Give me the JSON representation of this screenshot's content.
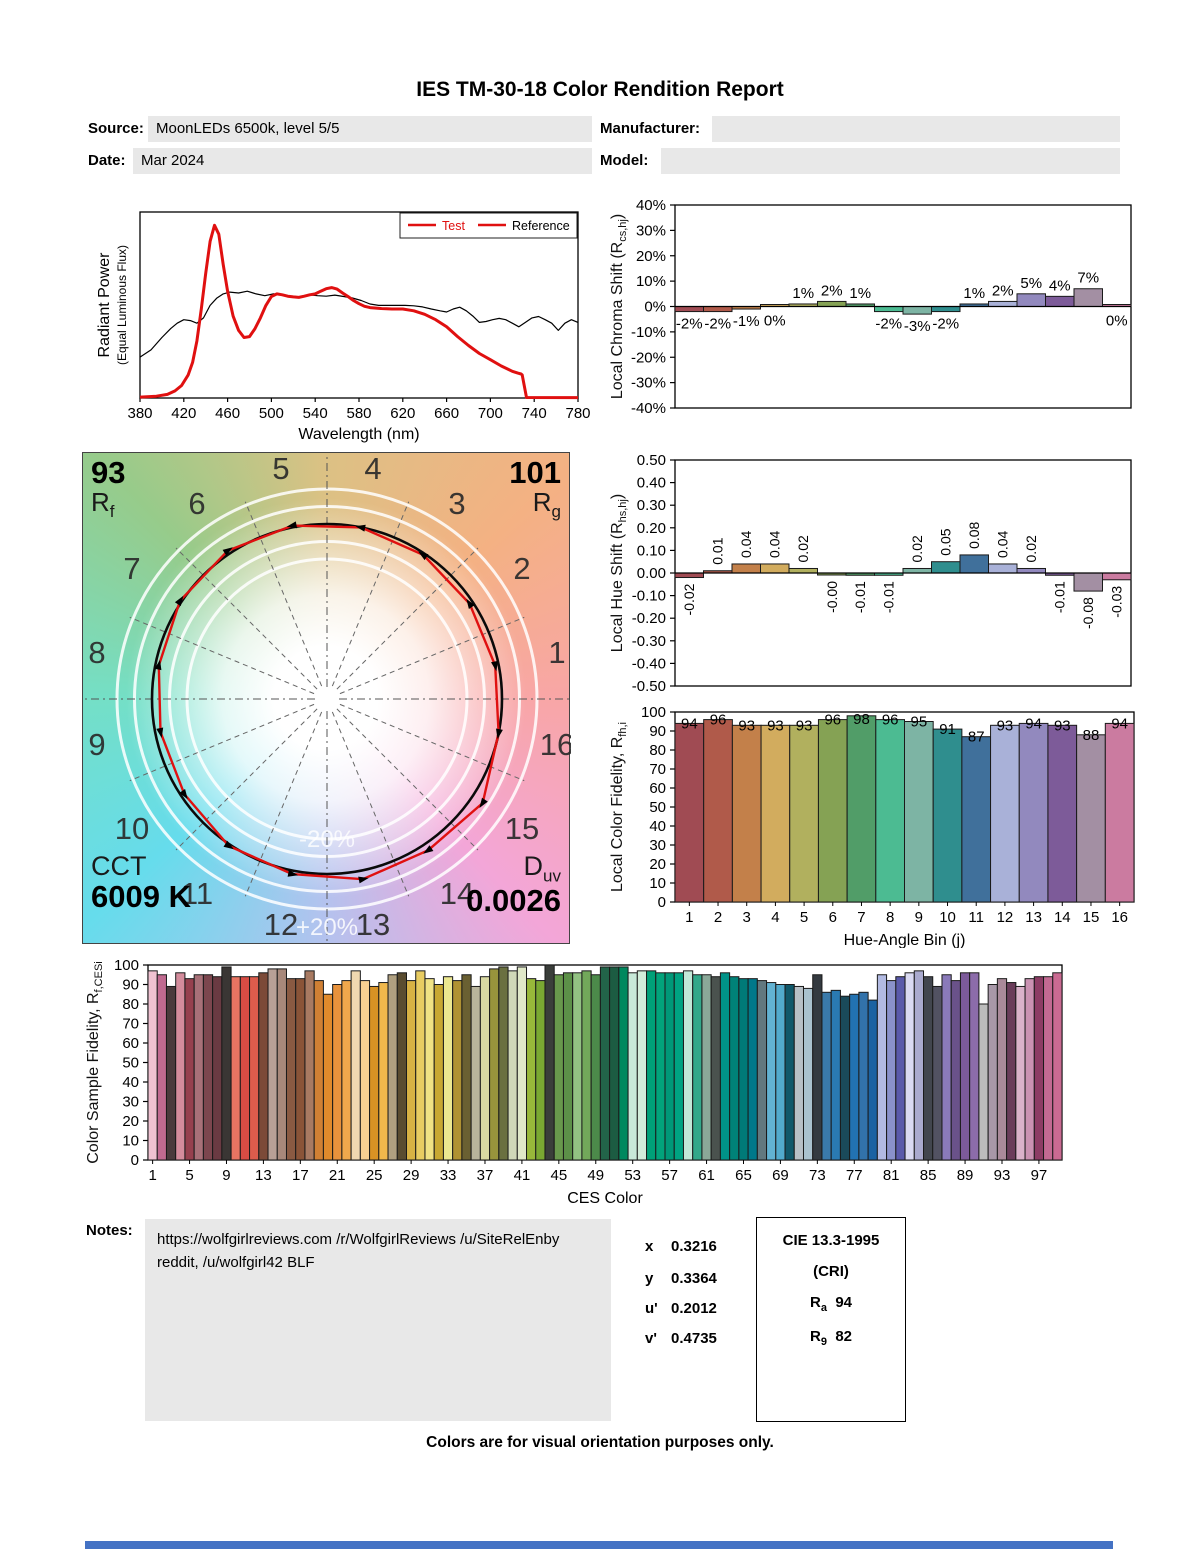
{
  "accent_red": "#e01010",
  "report": {
    "title": "IES TM-30-18 Color Rendition Report",
    "source_label": "Source:",
    "source_value": "MoonLEDs 6500k, level 5/5",
    "manufacturer_label": "Manufacturer:",
    "manufacturer_value": "",
    "date_label": "Date:",
    "date_value": "Mar 2024",
    "model_label": "Model:",
    "model_value": "",
    "notes_label": "Notes:",
    "notes_line1": "https://wolfgirlreviews.com /r/WolfgirlReviews /u/SiteRelEnby",
    "notes_line2": "reddit, /u/wolfgirl42 BLF",
    "footer": "Colors are for visual orientation purposes only."
  },
  "summary": {
    "rf_value": "93",
    "rf_sym": "R",
    "rf_sub": "f",
    "rg_value": "101",
    "rg_sym": "R",
    "rg_sub": "g",
    "cct_label": "CCT",
    "cct_value": "6009 K",
    "duv_sym": "D",
    "duv_sub": "uv",
    "duv_value": "0.0026",
    "chromaticity": [
      {
        "label": "x",
        "value": "0.3216"
      },
      {
        "label": "y",
        "value": "0.3364"
      },
      {
        "label": "u'",
        "value": "0.2012"
      },
      {
        "label": "v'",
        "value": "0.4735"
      }
    ],
    "cri": {
      "title": "CIE 13.3-1995",
      "subtitle": "(CRI)",
      "ra_sym": "R",
      "ra_sub": "a",
      "ra_value": "94",
      "r9_sym": "R",
      "r9_sub": "9",
      "r9_value": "82"
    }
  },
  "hue_bin_colors": [
    "#A04B53",
    "#B05A4A",
    "#C3804A",
    "#D2AC5E",
    "#B1B05E",
    "#85A254",
    "#519D68",
    "#4CBB92",
    "#7DB4A4",
    "#2F8E8E",
    "#40709B",
    "#A9B1D8",
    "#9289BE",
    "#7D5B99",
    "#A38FA3",
    "#CB7BA0"
  ],
  "chart_data": [
    {
      "id": "spd",
      "type": "line",
      "xlabel": "Wavelength (nm)",
      "ylabel": "Radiant Power",
      "ylabel2": "(Equal Luminous Flux)",
      "xlim": [
        380,
        780
      ],
      "xtick_step": 40,
      "legend": [
        {
          "label": "Test",
          "text_color": "#e01010",
          "line_color": "#e01010"
        },
        {
          "label": "Reference",
          "text_color": "#000000",
          "line_color": "#e01010"
        }
      ],
      "series": [
        {
          "name": "Test",
          "color": "#e01010",
          "width": 3,
          "x": [
            380,
            395,
            405,
            412,
            418,
            424,
            428,
            432,
            436,
            440,
            444,
            448,
            452,
            456,
            460,
            465,
            470,
            475,
            480,
            485,
            490,
            495,
            500,
            505,
            510,
            515,
            520,
            525,
            530,
            535,
            540,
            545,
            550,
            555,
            560,
            565,
            570,
            575,
            580,
            585,
            590,
            600,
            610,
            620,
            630,
            640,
            650,
            660,
            670,
            680,
            690,
            700,
            710,
            715,
            720,
            725,
            728,
            729,
            733,
            780
          ],
          "y": [
            0.005,
            0.01,
            0.02,
            0.04,
            0.07,
            0.13,
            0.2,
            0.32,
            0.5,
            0.7,
            0.88,
            0.97,
            0.92,
            0.75,
            0.6,
            0.46,
            0.38,
            0.34,
            0.345,
            0.39,
            0.45,
            0.52,
            0.57,
            0.585,
            0.58,
            0.572,
            0.568,
            0.565,
            0.572,
            0.58,
            0.585,
            0.6,
            0.614,
            0.62,
            0.612,
            0.59,
            0.57,
            0.548,
            0.53,
            0.515,
            0.508,
            0.503,
            0.5,
            0.5,
            0.49,
            0.47,
            0.44,
            0.4,
            0.345,
            0.295,
            0.25,
            0.215,
            0.18,
            0.165,
            0.15,
            0.14,
            0.135,
            0.13,
            0.003,
            0.002
          ]
        },
        {
          "name": "Reference",
          "color": "#000000",
          "width": 1.2,
          "x": [
            380,
            390,
            400,
            408,
            414,
            420,
            426,
            432,
            438,
            444,
            450,
            456,
            462,
            470,
            478,
            486,
            494,
            502,
            510,
            518,
            526,
            534,
            542,
            550,
            558,
            566,
            574,
            582,
            590,
            598,
            606,
            614,
            622,
            630,
            638,
            646,
            654,
            660,
            666,
            672,
            678,
            684,
            690,
            696,
            702,
            708,
            714,
            720,
            726,
            732,
            738,
            744,
            750,
            756,
            762,
            768,
            774,
            780
          ],
          "y": [
            0.23,
            0.27,
            0.34,
            0.39,
            0.42,
            0.44,
            0.435,
            0.42,
            0.45,
            0.52,
            0.56,
            0.585,
            0.595,
            0.59,
            0.6,
            0.585,
            0.575,
            0.585,
            0.58,
            0.572,
            0.568,
            0.58,
            0.575,
            0.572,
            0.578,
            0.57,
            0.562,
            0.548,
            0.528,
            0.52,
            0.52,
            0.52,
            0.52,
            0.518,
            0.512,
            0.5,
            0.49,
            0.483,
            0.5,
            0.51,
            0.49,
            0.46,
            0.425,
            0.43,
            0.44,
            0.447,
            0.44,
            0.42,
            0.4,
            0.425,
            0.45,
            0.458,
            0.44,
            0.42,
            0.38,
            0.42,
            0.44,
            0.425
          ]
        }
      ]
    },
    {
      "id": "chroma_shift",
      "type": "bar",
      "ylabel_parts": [
        {
          "t": "Local Chroma Shift (R"
        },
        {
          "t": "cs,hj",
          "sub": true
        },
        {
          "t": ")"
        }
      ],
      "ylim": [
        -40,
        40
      ],
      "ytick_step": 10,
      "ytick_suffix": "%",
      "values": [
        -2,
        -2,
        -1,
        0,
        1,
        2,
        1,
        -2,
        -3,
        -2,
        1,
        2,
        5,
        4,
        7,
        0
      ],
      "labels": [
        "-2%",
        "-2%",
        "-1%",
        "0%",
        "1%",
        "2%",
        "1%",
        "-2%",
        "-3%",
        "-2%",
        "1%",
        "2%",
        "5%",
        "4%",
        "7%",
        "0%"
      ]
    },
    {
      "id": "hue_shift",
      "type": "bar",
      "ylabel_parts": [
        {
          "t": "Local Hue Shift (R"
        },
        {
          "t": "hs,hj",
          "sub": true
        },
        {
          "t": ")"
        }
      ],
      "ylim": [
        -0.5,
        0.5
      ],
      "ytick_step": 0.1,
      "values": [
        -0.02,
        0.01,
        0.04,
        0.04,
        0.02,
        -0.002,
        -0.01,
        -0.01,
        0.02,
        0.05,
        0.08,
        0.04,
        0.02,
        -0.01,
        -0.08,
        -0.03
      ],
      "labels": [
        "-0.02",
        "0.01",
        "0.04",
        "0.04",
        "0.02",
        "-0.00",
        "-0.01",
        "-0.01",
        "0.02",
        "0.05",
        "0.08",
        "0.04",
        "0.02",
        "-0.01",
        "-0.08",
        "-0.03"
      ]
    },
    {
      "id": "local_fidelity",
      "type": "bar",
      "ylabel_parts": [
        {
          "t": "Local Color Fidelity, R"
        },
        {
          "t": "fh,i",
          "sub": true
        }
      ],
      "xlabel": "Hue-Angle Bin (j)",
      "ylim": [
        0,
        100
      ],
      "ytick_step": 10,
      "categories": [
        "1",
        "2",
        "3",
        "4",
        "5",
        "6",
        "7",
        "8",
        "9",
        "10",
        "11",
        "12",
        "13",
        "14",
        "15",
        "16"
      ],
      "values": [
        94,
        96,
        93,
        93,
        93,
        96,
        98,
        96,
        95,
        91,
        87,
        93,
        94,
        93,
        88,
        94
      ],
      "labels": [
        "94",
        "96",
        "93",
        "93",
        "93",
        "96",
        "98",
        "96",
        "95",
        "91",
        "87",
        "93",
        "94",
        "93",
        "88",
        "94"
      ]
    },
    {
      "id": "ces_fidelity",
      "type": "bar",
      "ylabel_parts": [
        {
          "t": "Color Sample Fidelity, R"
        },
        {
          "t": "f,CESi",
          "sub": true
        }
      ],
      "xlabel": "CES Color",
      "ylim": [
        0,
        100
      ],
      "ytick_step": 10,
      "xticks": [
        1,
        5,
        9,
        13,
        17,
        21,
        25,
        29,
        33,
        37,
        41,
        45,
        49,
        53,
        57,
        61,
        65,
        69,
        73,
        77,
        81,
        85,
        89,
        93,
        97
      ],
      "values": [
        97,
        95,
        89,
        96,
        93,
        95,
        95,
        94,
        99,
        94,
        94,
        94,
        96,
        98,
        98,
        93,
        93,
        97,
        92,
        85,
        90,
        92,
        97,
        92,
        89,
        91,
        95,
        96,
        92,
        97,
        93,
        90,
        94,
        92,
        95,
        89,
        94,
        98,
        99,
        97,
        99,
        93,
        92,
        100,
        95,
        96,
        96,
        97,
        95,
        99,
        99,
        99,
        96,
        97,
        97,
        96,
        96,
        96,
        97,
        95,
        95,
        94,
        96,
        94,
        93,
        93,
        92,
        91,
        90,
        90,
        89,
        88,
        95,
        86,
        87,
        84,
        85,
        86,
        82,
        95,
        92,
        94,
        96,
        97,
        94,
        89,
        95,
        92,
        96,
        96,
        80,
        90,
        93,
        91,
        89,
        93,
        94,
        94,
        96
      ],
      "colors": [
        "#EFC2D1",
        "#C06A90",
        "#4A3A3C",
        "#D48C9C",
        "#96404E",
        "#A87078",
        "#7C464E",
        "#6A3A42",
        "#3A3634",
        "#E87462",
        "#D84C44",
        "#DC5C4C",
        "#7C4A38",
        "#B8A096",
        "#A8887A",
        "#8A5A42",
        "#8A5438",
        "#A87A62",
        "#D08034",
        "#E08A2C",
        "#E8923C",
        "#F0A84C",
        "#F0D8B0",
        "#F8D092",
        "#D89224",
        "#F0B84C",
        "#B0A080",
        "#5A4C30",
        "#D8B244",
        "#E8CC62",
        "#F0E284",
        "#C8A832",
        "#ECE890",
        "#B09232",
        "#6A6032",
        "#B8B49C",
        "#D8D8A2",
        "#98943C",
        "#6A7040",
        "#D0D8B8",
        "#E0E8C8",
        "#98B83A",
        "#7AA832",
        "#3A3E3A",
        "#68984C",
        "#5C9048",
        "#92C282",
        "#72A85A",
        "#4C8A4A",
        "#226449",
        "#1C5C42",
        "#00885E",
        "#C8E8D8",
        "#D2ECDA",
        "#00A078",
        "#02A37B",
        "#009878",
        "#00A382",
        "#C2E8D8",
        "#32A88A",
        "#8AA898",
        "#4A524E",
        "#009288",
        "#008278",
        "#007A78",
        "#00788A",
        "#62787F",
        "#62B2D2",
        "#52AACC",
        "#10586A",
        "#B8C0C6",
        "#AAC2CE",
        "#343A40",
        "#3A7AAA",
        "#2A7AB2",
        "#1A4A5A",
        "#2272B2",
        "#3272AA",
        "#1A62A2",
        "#B2BAE2",
        "#8A92CA",
        "#5A5AAA",
        "#DADAF2",
        "#AAAACE",
        "#42464E",
        "#525262",
        "#8A7ABA",
        "#6A528A",
        "#7C5A9A",
        "#8C6CAA",
        "#BCBCBC",
        "#A898A8",
        "#AA8A9A",
        "#6A3C5A",
        "#DAB2CA",
        "#CA92B2",
        "#8C3C64",
        "#C26A92",
        "#CA6A92"
      ]
    },
    {
      "id": "color_vector",
      "type": "polar",
      "bin_labels": [
        "1",
        "2",
        "3",
        "4",
        "5",
        "6",
        "7",
        "8",
        "9",
        "10",
        "11",
        "12",
        "13",
        "14",
        "15",
        "16"
      ],
      "ring_outer_label": "+20%",
      "ring_inner_label": "-20%"
    }
  ]
}
